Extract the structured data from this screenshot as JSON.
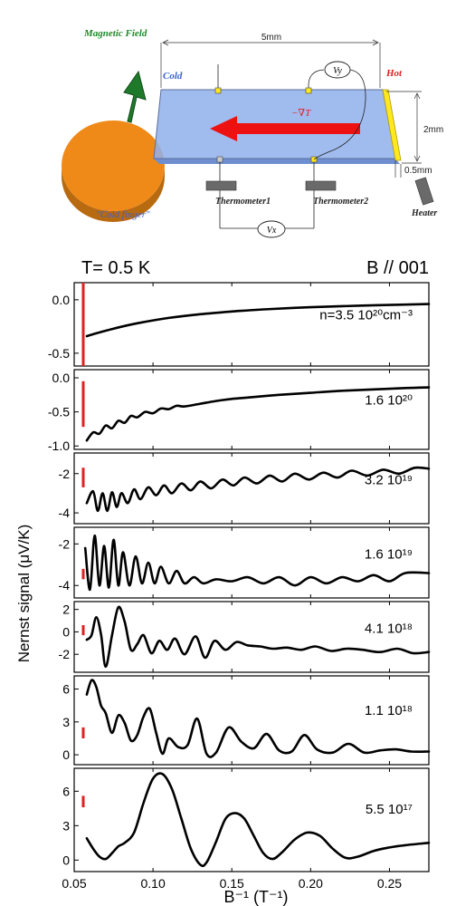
{
  "schematic": {
    "magnetic_field": "Magnetic Field",
    "cold": "Cold",
    "hot": "Hot",
    "length": "5mm",
    "width": "2mm",
    "thickness": "0.5mm",
    "gradient": "−∇T",
    "vy": "Vy",
    "vx": "Vx",
    "thermometer1": "Thermometer1",
    "thermometer2": "Thermometer2",
    "heater": "Heater",
    "cold_finger": "\"Cold finger\"",
    "colors": {
      "cold_finger": "#ef8a18",
      "sample": "#8fb0ec",
      "arrow": "#ee1111",
      "field_arrow": "#1e7a2a",
      "heater_strip": "#ffe81e",
      "magnetic_label": "#1e8a2a",
      "cold_label": "#3a63d0",
      "hot_label": "#e01f1f"
    }
  },
  "header": {
    "temperature": "T= 0.5 K",
    "orientation": "B // 001"
  },
  "chart_data": {
    "type": "line",
    "xlabel": "B⁻¹ (T⁻¹)",
    "ylabel": "Nernst signal (μV/K)",
    "xlim": [
      0.05,
      0.275
    ],
    "xticks": [
      "0.05",
      "0.10",
      "0.15",
      "0.20",
      "0.25"
    ],
    "line_color": "#000000",
    "bar_color": "#e02020",
    "panels": [
      {
        "label": "n=3.5 10²⁰cm⁻³",
        "ylim": [
          -0.62,
          0.16
        ],
        "yticks": [
          "0.0",
          "-0.5"
        ],
        "scale_bar": [
          -0.62,
          0.16
        ],
        "x": [
          0.058,
          0.065,
          0.075,
          0.09,
          0.11,
          0.13,
          0.15,
          0.17,
          0.2,
          0.23,
          0.26,
          0.275
        ],
        "y": [
          -0.34,
          -0.31,
          -0.27,
          -0.22,
          -0.17,
          -0.135,
          -0.11,
          -0.09,
          -0.07,
          -0.055,
          -0.045,
          -0.04
        ]
      },
      {
        "label": "1.6 10²⁰",
        "ylim": [
          -1.05,
          0.12
        ],
        "yticks": [
          "0.0",
          "-0.5",
          "-1.0"
        ],
        "scale_bar": [
          -0.72,
          -0.05
        ],
        "x": [
          0.058,
          0.062,
          0.066,
          0.07,
          0.074,
          0.078,
          0.082,
          0.086,
          0.09,
          0.095,
          0.1,
          0.105,
          0.11,
          0.115,
          0.12,
          0.13,
          0.14,
          0.15,
          0.16,
          0.18,
          0.2,
          0.22,
          0.24,
          0.26,
          0.275
        ],
        "y": [
          -0.92,
          -0.8,
          -0.82,
          -0.7,
          -0.74,
          -0.63,
          -0.66,
          -0.56,
          -0.58,
          -0.5,
          -0.52,
          -0.45,
          -0.46,
          -0.41,
          -0.42,
          -0.38,
          -0.34,
          -0.31,
          -0.29,
          -0.25,
          -0.22,
          -0.19,
          -0.17,
          -0.15,
          -0.14
        ]
      },
      {
        "label": "3.2 10¹⁹",
        "ylim": [
          -4.55,
          -0.95
        ],
        "yticks": [
          "-2",
          "-4"
        ],
        "scale_bar": [
          -2.7,
          -1.7
        ],
        "x": [
          0.058,
          0.062,
          0.065,
          0.068,
          0.071,
          0.074,
          0.077,
          0.08,
          0.084,
          0.088,
          0.092,
          0.097,
          0.102,
          0.107,
          0.112,
          0.118,
          0.124,
          0.13,
          0.137,
          0.144,
          0.151,
          0.158,
          0.166,
          0.174,
          0.182,
          0.19,
          0.199,
          0.208,
          0.217,
          0.226,
          0.236,
          0.246,
          0.256,
          0.266,
          0.275
        ],
        "y": [
          -3.5,
          -2.9,
          -3.9,
          -3.0,
          -3.9,
          -2.95,
          -3.7,
          -3.0,
          -3.5,
          -2.8,
          -3.3,
          -2.7,
          -3.1,
          -2.6,
          -3.0,
          -2.5,
          -2.85,
          -2.4,
          -2.75,
          -2.3,
          -2.6,
          -2.2,
          -2.5,
          -2.1,
          -2.4,
          -2.0,
          -2.3,
          -1.95,
          -2.2,
          -1.85,
          -2.1,
          -1.8,
          -2.0,
          -1.7,
          -1.75
        ]
      },
      {
        "label": "1.6 10¹⁹",
        "ylim": [
          -4.6,
          -1.2
        ],
        "yticks": [
          "-2",
          "-4"
        ],
        "scale_bar": [
          -3.7,
          -3.2
        ],
        "x": [
          0.057,
          0.06,
          0.063,
          0.066,
          0.069,
          0.072,
          0.075,
          0.078,
          0.081,
          0.085,
          0.089,
          0.093,
          0.097,
          0.101,
          0.105,
          0.11,
          0.115,
          0.12,
          0.126,
          0.132,
          0.14,
          0.15,
          0.16,
          0.17,
          0.18,
          0.19,
          0.2,
          0.21,
          0.22,
          0.23,
          0.24,
          0.25,
          0.26,
          0.275
        ],
        "y": [
          -2.2,
          -4.2,
          -1.6,
          -4.0,
          -2.1,
          -4.1,
          -1.8,
          -4.0,
          -2.4,
          -4.0,
          -2.6,
          -3.9,
          -2.9,
          -3.9,
          -3.1,
          -3.9,
          -3.3,
          -3.9,
          -3.6,
          -3.9,
          -3.7,
          -3.8,
          -3.6,
          -3.9,
          -3.6,
          -4.0,
          -3.6,
          -3.9,
          -3.6,
          -3.8,
          -3.5,
          -3.8,
          -3.4,
          -3.4
        ]
      },
      {
        "label": "4.1 10¹⁸",
        "ylim": [
          -3.6,
          2.7
        ],
        "yticks": [
          "2",
          "0",
          "-2"
        ],
        "scale_bar": [
          -0.3,
          0.6
        ],
        "x": [
          0.058,
          0.061,
          0.064,
          0.067,
          0.07,
          0.074,
          0.078,
          0.082,
          0.086,
          0.09,
          0.094,
          0.099,
          0.104,
          0.109,
          0.114,
          0.12,
          0.127,
          0.133,
          0.139,
          0.146,
          0.153,
          0.16,
          0.168,
          0.176,
          0.185,
          0.194,
          0.203,
          0.213,
          0.223,
          0.233,
          0.244,
          0.255,
          0.265,
          0.275
        ],
        "y": [
          -0.7,
          -0.3,
          1.3,
          -0.2,
          -3.1,
          -0.3,
          2.2,
          0.9,
          -1.6,
          -1.1,
          -0.3,
          -1.9,
          -0.8,
          -1.6,
          -0.6,
          -2.0,
          -0.4,
          -2.3,
          -0.8,
          -1.6,
          -0.9,
          -1.2,
          -1.3,
          -1.5,
          -1.4,
          -1.6,
          -1.3,
          -1.7,
          -1.5,
          -1.6,
          -1.8,
          -1.5,
          -1.9,
          -1.8
        ]
      },
      {
        "label": "1.1 10¹⁸",
        "ylim": [
          -0.9,
          7.2
        ],
        "yticks": [
          "6",
          "3",
          "0"
        ],
        "scale_bar": [
          1.5,
          2.5
        ],
        "x": [
          0.058,
          0.061,
          0.064,
          0.067,
          0.07,
          0.074,
          0.078,
          0.082,
          0.086,
          0.09,
          0.094,
          0.098,
          0.102,
          0.106,
          0.11,
          0.116,
          0.122,
          0.128,
          0.134,
          0.14,
          0.148,
          0.156,
          0.164,
          0.172,
          0.18,
          0.188,
          0.196,
          0.204,
          0.214,
          0.224,
          0.234,
          0.244,
          0.254,
          0.264,
          0.275
        ],
        "y": [
          5.5,
          6.8,
          6.2,
          4.5,
          3.8,
          2.0,
          3.6,
          2.9,
          1.3,
          1.8,
          3.5,
          4.2,
          2.0,
          0.1,
          1.5,
          0.7,
          0.9,
          3.3,
          0.1,
          0.2,
          2.5,
          1.2,
          0.6,
          1.9,
          0.4,
          0.3,
          1.8,
          0.5,
          0.2,
          1.0,
          0.2,
          0.4,
          0.5,
          0.3,
          0.3
        ]
      },
      {
        "label": "5.5 10¹⁷",
        "ylim": [
          -1.0,
          8.0
        ],
        "yticks": [
          "6",
          "3",
          "0"
        ],
        "scale_bar": [
          4.6,
          5.6
        ],
        "x": [
          0.058,
          0.062,
          0.066,
          0.07,
          0.074,
          0.078,
          0.082,
          0.088,
          0.094,
          0.1,
          0.106,
          0.112,
          0.118,
          0.124,
          0.13,
          0.134,
          0.14,
          0.146,
          0.152,
          0.158,
          0.164,
          0.17,
          0.176,
          0.182,
          0.19,
          0.198,
          0.206,
          0.214,
          0.222,
          0.23,
          0.24,
          0.25,
          0.26,
          0.275
        ],
        "y": [
          1.9,
          1.0,
          0.3,
          0.1,
          0.6,
          1.2,
          1.5,
          2.4,
          5.0,
          7.1,
          7.5,
          6.2,
          3.6,
          1.0,
          -0.4,
          -0.2,
          1.6,
          3.6,
          4.1,
          3.6,
          2.1,
          0.6,
          0.1,
          0.7,
          1.8,
          2.4,
          2.1,
          1.0,
          0.2,
          0.3,
          0.8,
          1.1,
          1.3,
          1.5
        ]
      }
    ]
  }
}
